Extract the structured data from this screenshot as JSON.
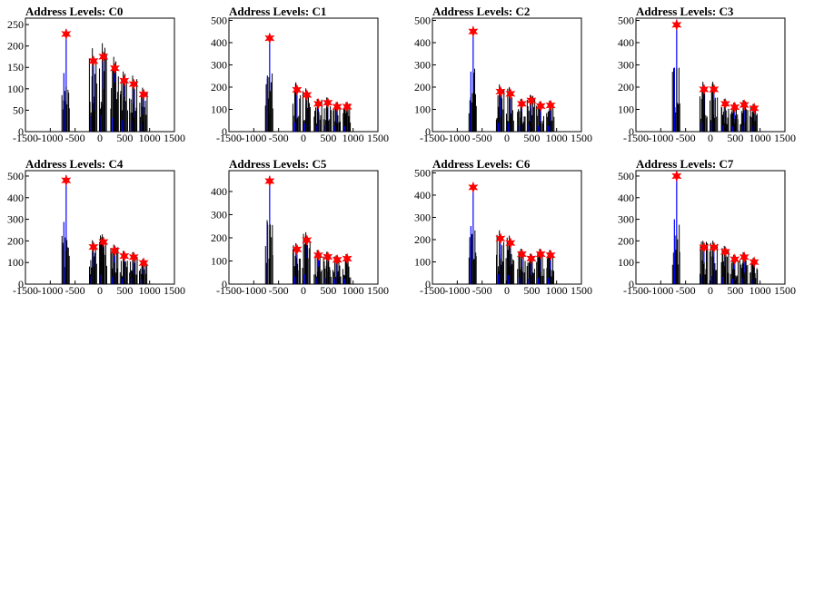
{
  "chart_data": [
    {
      "type": "bar",
      "title": "Address Levels: C0",
      "xlim": [
        -1500,
        1500
      ],
      "ylim": [
        0,
        265
      ],
      "xticks": [
        -1500,
        -1000,
        -500,
        0,
        500,
        1000,
        1500
      ],
      "yticks": [
        0,
        50,
        100,
        150,
        200,
        250
      ],
      "peaks": [
        {
          "x": -680,
          "y": 228
        },
        {
          "x": -130,
          "y": 165
        },
        {
          "x": 70,
          "y": 175
        },
        {
          "x": 300,
          "y": 148
        },
        {
          "x": 490,
          "y": 119
        },
        {
          "x": 680,
          "y": 111
        },
        {
          "x": 880,
          "y": 87
        }
      ]
    },
    {
      "type": "bar",
      "title": "Address Levels: C1",
      "xlim": [
        -1500,
        1500
      ],
      "ylim": [
        0,
        510
      ],
      "xticks": [
        -1500,
        -1000,
        -500,
        0,
        500,
        1000,
        1500
      ],
      "yticks": [
        0,
        100,
        200,
        300,
        400,
        500
      ],
      "peaks": [
        {
          "x": -680,
          "y": 420
        },
        {
          "x": -130,
          "y": 188
        },
        {
          "x": 70,
          "y": 165
        },
        {
          "x": 300,
          "y": 125
        },
        {
          "x": 490,
          "y": 130
        },
        {
          "x": 680,
          "y": 112
        },
        {
          "x": 880,
          "y": 112
        }
      ]
    },
    {
      "type": "bar",
      "title": "Address Levels: C2",
      "xlim": [
        -1500,
        1500
      ],
      "ylim": [
        0,
        510
      ],
      "xticks": [
        -1500,
        -1000,
        -500,
        0,
        500,
        1000,
        1500
      ],
      "yticks": [
        0,
        100,
        200,
        300,
        400,
        500
      ],
      "peaks": [
        {
          "x": -680,
          "y": 450
        },
        {
          "x": -130,
          "y": 180
        },
        {
          "x": 70,
          "y": 170
        },
        {
          "x": 300,
          "y": 125
        },
        {
          "x": 490,
          "y": 140
        },
        {
          "x": 680,
          "y": 115
        },
        {
          "x": 880,
          "y": 118
        }
      ]
    },
    {
      "type": "bar",
      "title": "Address Levels: C3",
      "xlim": [
        -1500,
        1500
      ],
      "ylim": [
        0,
        510
      ],
      "xticks": [
        -1500,
        -1000,
        -500,
        0,
        500,
        1000,
        1500
      ],
      "yticks": [
        0,
        100,
        200,
        300,
        400,
        500
      ],
      "peaks": [
        {
          "x": -680,
          "y": 480
        },
        {
          "x": -130,
          "y": 190
        },
        {
          "x": 70,
          "y": 190
        },
        {
          "x": 300,
          "y": 125
        },
        {
          "x": 490,
          "y": 110
        },
        {
          "x": 680,
          "y": 120
        },
        {
          "x": 880,
          "y": 105
        }
      ]
    },
    {
      "type": "bar",
      "title": "Address Levels: C4",
      "xlim": [
        -1500,
        1500
      ],
      "ylim": [
        0,
        525
      ],
      "xticks": [
        -1500,
        -1000,
        -500,
        0,
        500,
        1000,
        1500
      ],
      "yticks": [
        0,
        100,
        200,
        300,
        400,
        500
      ],
      "peaks": [
        {
          "x": -680,
          "y": 480
        },
        {
          "x": -130,
          "y": 172
        },
        {
          "x": 70,
          "y": 195
        },
        {
          "x": 300,
          "y": 155
        },
        {
          "x": 490,
          "y": 130
        },
        {
          "x": 680,
          "y": 125
        },
        {
          "x": 880,
          "y": 98
        }
      ]
    },
    {
      "type": "bar",
      "title": "Address Levels: C5",
      "xlim": [
        -1500,
        1500
      ],
      "ylim": [
        0,
        490
      ],
      "xticks": [
        -1500,
        -1000,
        -500,
        0,
        500,
        1000,
        1500
      ],
      "yticks": [
        0,
        100,
        200,
        300,
        400
      ],
      "peaks": [
        {
          "x": -680,
          "y": 445
        },
        {
          "x": -130,
          "y": 150
        },
        {
          "x": 70,
          "y": 190
        },
        {
          "x": 300,
          "y": 125
        },
        {
          "x": 490,
          "y": 118
        },
        {
          "x": 680,
          "y": 105
        },
        {
          "x": 880,
          "y": 110
        }
      ]
    },
    {
      "type": "bar",
      "title": "Address Levels: C6",
      "xlim": [
        -1500,
        1500
      ],
      "ylim": [
        0,
        510
      ],
      "xticks": [
        -1500,
        -1000,
        -500,
        0,
        500,
        1000,
        1500
      ],
      "yticks": [
        0,
        100,
        200,
        300,
        400,
        500
      ],
      "peaks": [
        {
          "x": -680,
          "y": 435
        },
        {
          "x": -130,
          "y": 205
        },
        {
          "x": 70,
          "y": 185
        },
        {
          "x": 300,
          "y": 135
        },
        {
          "x": 490,
          "y": 115
        },
        {
          "x": 680,
          "y": 135
        },
        {
          "x": 880,
          "y": 130
        }
      ]
    },
    {
      "type": "bar",
      "title": "Address Levels: C7",
      "xlim": [
        -1500,
        1500
      ],
      "ylim": [
        0,
        525
      ],
      "xticks": [
        -1500,
        -1000,
        -500,
        0,
        500,
        1000,
        1500
      ],
      "yticks": [
        0,
        100,
        200,
        300,
        400,
        500
      ],
      "peaks": [
        {
          "x": -680,
          "y": 500
        },
        {
          "x": -130,
          "y": 170
        },
        {
          "x": 70,
          "y": 170
        },
        {
          "x": 300,
          "y": 150
        },
        {
          "x": 490,
          "y": 115
        },
        {
          "x": 680,
          "y": 125
        },
        {
          "x": 880,
          "y": 102
        }
      ]
    }
  ],
  "colors": {
    "histogram_fill": "#0000ff",
    "histogram_outline": "#000000",
    "marker": "#ff0000"
  }
}
